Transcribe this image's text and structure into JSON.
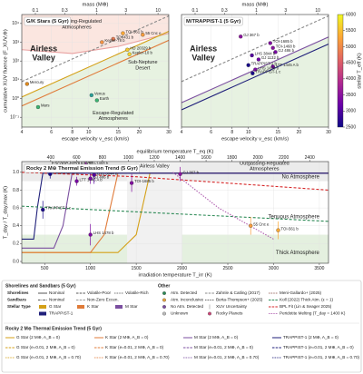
{
  "chart_data": [
    {
      "type": "scatter",
      "title": "G/K Stars (5 Gyr)",
      "x_label": "escape velocity v_esc (km/s)",
      "y_label": "cumulative XUV fluence (F_XUV,⊕)",
      "x2_label": "mass (M⊕)",
      "log_x": true,
      "log_y": true,
      "grid": true,
      "xlim": [
        4,
        30
      ],
      "xticks": [
        4,
        6,
        8,
        10,
        15,
        20,
        30
      ],
      "x2lim": [
        0.06,
        15
      ],
      "x2ticks": [
        0.1,
        0.3,
        1,
        3,
        10
      ],
      "ylim": [
        0.03,
        30000
      ],
      "yticks": [
        {
          "value": 0.1,
          "label": "10⁻¹"
        },
        {
          "value": 1,
          "label": "10⁰"
        },
        {
          "value": 10,
          "label": "10¹"
        },
        {
          "value": 100,
          "label": "10²"
        },
        {
          "value": 1000,
          "label": "10³"
        },
        {
          "value": 10000,
          "label": "10⁴"
        }
      ],
      "lines": [
        {
          "color": "#e8a0a0",
          "x": [
            4,
            8,
            15,
            30
          ],
          "y": [
            400,
            250,
            600,
            3000
          ],
          "fill": "above",
          "fill_color": "#fbe6e0"
        },
        {
          "color": "#d4a017",
          "x": [
            4,
            30
          ],
          "y": [
            1.2,
            3800
          ],
          "fill": "below",
          "fill_color": "#e7f2e1"
        },
        {
          "color": "#e07b39",
          "x": [
            4,
            30
          ],
          "y": [
            0.4,
            1266
          ]
        },
        {
          "color": "#888888",
          "dash": "3,2",
          "x": [
            4,
            30
          ],
          "y": [
            8,
            25300
          ]
        }
      ],
      "points": [
        {
          "label": "Mercury",
          "x": 4.3,
          "y": 6,
          "color": "#e08a1e"
        },
        {
          "label": "Venus",
          "x": 10.4,
          "y": 1.5,
          "color": "#2aa198"
        },
        {
          "label": "Earth",
          "x": 11.2,
          "y": 0.8,
          "color": "#3cb371"
        },
        {
          "label": "Mars",
          "x": 5.0,
          "y": 0.35,
          "color": "#3cb371"
        },
        {
          "label": "TOI-561 b",
          "x": 16,
          "y": 3000,
          "teff": 5326
        },
        {
          "label": "55 Cnc e",
          "x": 21,
          "y": 2500,
          "teff": 5196
        },
        {
          "label": "TOI-431 b",
          "x": 14,
          "y": 1500,
          "teff": 4850
        },
        {
          "label": "Kepler-78 b",
          "x": 12,
          "y": 1000,
          "teff": 5100
        },
        {
          "label": "HD 20329 b",
          "x": 17,
          "y": 400,
          "teff": 5600
        },
        {
          "label": "Kepler-10 b",
          "x": 17.5,
          "y": 230,
          "teff": 5700
        }
      ],
      "annotations": [
        {
          "text": [
            "Outgassing-Regulated",
            "Atmospheres"
          ],
          "color": "#c97a7a"
        },
        {
          "text": [
            "Airless",
            "Valley"
          ],
          "color": "#9a9a9a"
        },
        {
          "text": [
            "Sub-Neptune",
            "Desert"
          ],
          "color": "#777777"
        },
        {
          "text": [
            "Escape-Regulated",
            "Atmospheres"
          ],
          "color": "#777777"
        }
      ]
    },
    {
      "type": "scatter",
      "title": "M/TRAPPIST-1 (5 Gyr)",
      "x_label": "escape velocity v_esc (km/s)",
      "x2_label": "mass (M⊕)",
      "log_x": true,
      "log_y": true,
      "grid": true,
      "xlim": [
        4,
        30
      ],
      "xticks": [
        4,
        6,
        8,
        10,
        15,
        20,
        30
      ],
      "x2lim": [
        0.06,
        15
      ],
      "x2ticks": [
        0.1,
        0.3,
        1,
        3,
        10
      ],
      "ylim": [
        0.03,
        30000
      ],
      "lines": [
        {
          "color": "#7b4fa0",
          "x": [
            4,
            30
          ],
          "y": [
            0.6,
            1900
          ],
          "fill": "below",
          "fill_color": "#e7f2e1"
        },
        {
          "color": "#1f1f7a",
          "x": [
            4,
            30
          ],
          "y": [
            0.25,
            800
          ]
        },
        {
          "color": "#888888",
          "dash": "3,2",
          "x": [
            4,
            30
          ],
          "y": [
            8,
            25300
          ]
        }
      ],
      "points": [
        {
          "label": "GJ 367 b",
          "x": 9,
          "y": 2000,
          "teff": 3522
        },
        {
          "label": "TOI-1685 b",
          "x": 13.5,
          "y": 900,
          "teff": 3434
        },
        {
          "label": "TOI-1468 b",
          "x": 14,
          "y": 500,
          "teff": 3496
        },
        {
          "label": "GJ 486 b",
          "x": 14.5,
          "y": 300,
          "teff": 3340
        },
        {
          "label": "LHS 3844 b",
          "x": 10.5,
          "y": 200,
          "teff": 3036
        },
        {
          "label": "GJ 1132 b",
          "x": 11.5,
          "y": 120,
          "teff": 3270
        },
        {
          "label": "TRAPPIST-1 b",
          "x": 10,
          "y": 60,
          "teff": 2566
        },
        {
          "label": "LTT 1445 A b",
          "x": 14,
          "y": 50,
          "teff": 3340
        },
        {
          "label": "LHS 1478 b",
          "x": 11,
          "y": 35,
          "teff": 3381
        },
        {
          "label": "TRAPPIST-1 c",
          "x": 10.6,
          "y": 22,
          "teff": 2566
        }
      ],
      "annotations": [
        {
          "text": [
            "Airless",
            "Valley"
          ],
          "color": "#9a9a9a"
        }
      ],
      "colorbar": {
        "label": "stellar T_eff (K)",
        "lim": [
          2500,
          6000
        ],
        "ticks": [
          2500,
          3000,
          3500,
          4000,
          4500,
          5000,
          5500,
          6000
        ]
      }
    },
    {
      "type": "line",
      "title": "Rocky 2 M⊕ Thermal Emission Trend (5 Gyr)",
      "x_label": "irradiation temperature T_irr (K)",
      "y_label": "T_day / T_day,max (K)",
      "x2_label": "equilibrium temperature T_eq (K)",
      "log_x": false,
      "log_y": false,
      "grid": true,
      "xlim": [
        250,
        3600
      ],
      "xticks": [
        500,
        1000,
        1500,
        2000,
        2500,
        3000,
        3500
      ],
      "x2lim": [
        176.8,
        2545.6
      ],
      "x2ticks": [
        400,
        600,
        800,
        1000,
        1200,
        1400,
        1600,
        1800,
        2000,
        2200,
        2400
      ],
      "ylim": [
        -0.02,
        1.12
      ],
      "yticks": [
        {
          "value": 0,
          "label": "0.0"
        },
        {
          "value": 0.2,
          "label": "0.2"
        },
        {
          "value": 0.4,
          "label": "0.4"
        },
        {
          "value": 0.6,
          "label": "0.6"
        },
        {
          "value": 0.8,
          "label": "0.8"
        },
        {
          "value": 1,
          "label": "1.0"
        }
      ],
      "hbands": [
        {
          "y": [
            0.9,
            1.12
          ],
          "color": "#ebebeb"
        },
        {
          "y": [
            -0.02,
            0.3
          ],
          "color": "#e4f0df"
        }
      ],
      "bands": [
        {
          "x": [
            1400,
            2000
          ],
          "color": "#f1f1f1"
        }
      ],
      "lines": [
        {
          "color": "#d4a017",
          "x": [
            250,
            1300,
            1500,
            1650,
            3600
          ],
          "y": [
            0.1,
            0.1,
            0.3,
            0.99,
            0.99
          ]
        },
        {
          "color": "#e07b39",
          "x": [
            250,
            1000,
            1150,
            1300,
            3600
          ],
          "y": [
            0.1,
            0.1,
            0.3,
            0.99,
            0.99
          ]
        },
        {
          "color": "#7b4fa0",
          "x": [
            250,
            600,
            700,
            800,
            3600
          ],
          "y": [
            0.15,
            0.15,
            0.4,
            0.99,
            0.99
          ]
        },
        {
          "color": "#1f1f7a",
          "x": [
            250,
            380,
            420,
            480,
            3600
          ],
          "y": [
            0.25,
            0.25,
            0.6,
            0.99,
            0.99
          ]
        },
        {
          "color": "#2e8b57",
          "dash": "3,2",
          "x": [
            250,
            3600
          ],
          "y": [
            0.62,
            0.45
          ]
        },
        {
          "color": "#d62728",
          "dash": "3,2",
          "x": [
            250,
            1500,
            3600
          ],
          "y": [
            1.0,
            0.95,
            0.8
          ]
        },
        {
          "color": "#b05fb0",
          "dash": "1.5,1.5",
          "x": [
            1900,
            2400,
            3000
          ],
          "y": [
            1.0,
            0.6,
            0.25
          ]
        }
      ],
      "points": [
        {
          "label": "TRAPPIST-1 c",
          "x": 480,
          "y": 0.58,
          "err": 0.1,
          "teff": 2566
        },
        {
          "label": "TRAPPIST-1 b",
          "x": 560,
          "y": 0.98,
          "err": 0.05,
          "teff": 2566
        },
        {
          "label": "LTT 1445 A b",
          "x": 850,
          "y": 0.9,
          "err": 0.05,
          "teff": 3340
        },
        {
          "label": "LHS 1478 b",
          "x": 1000,
          "y": 0.3,
          "err": 0.12,
          "teff": 3381
        },
        {
          "label": "TOI-1468 b",
          "x": 950,
          "y": 1.08,
          "err": 0.1,
          "teff": 3496
        },
        {
          "label": "GJ 486 b",
          "x": 1000,
          "y": 0.93,
          "err": 0.06,
          "teff": 3340
        },
        {
          "label": "LHS 3844 b",
          "x": 1040,
          "y": 0.97,
          "err": 0.1,
          "teff": 3036
        },
        {
          "label": "TOI-1685 b",
          "x": 1450,
          "y": 0.88,
          "err": 0.1,
          "teff": 3434
        },
        {
          "label": "GJ 367 b",
          "x": 1980,
          "y": 0.98,
          "err": 0.08,
          "teff": 3522
        },
        {
          "label": "55 Cnc e",
          "x": 2750,
          "y": 0.4,
          "err": 0.1,
          "teff": 5196
        },
        {
          "label": "TOI-561 b",
          "x": 3050,
          "y": 0.35,
          "err": 0.1,
          "teff": 5326
        }
      ],
      "annotations": [
        {
          "text": [
            "Escape-Regulated",
            "Atmospheres"
          ],
          "color": "#888888"
        },
        {
          "text": [
            "Airless Valley"
          ],
          "color": "#888888"
        },
        {
          "text": [
            "Outgassing-Regulated",
            "Atmospheres"
          ],
          "color": "#888888"
        },
        {
          "text": [
            "No Atmosphere"
          ],
          "color": "#777777"
        },
        {
          "text": [
            "Tenuous Atmosphere"
          ],
          "color": "#2e8b57"
        },
        {
          "text": [
            "Thick Atmosphere"
          ],
          "color": "#2e8b57"
        }
      ]
    }
  ],
  "legend": {
    "sections": [
      {
        "title": "Shorelines and Sandbars (5 Gyr)",
        "groups": [
          {
            "label": "Shorelines",
            "items": [
              {
                "text": "Nominal",
                "kind": "line",
                "color": "#555555"
              },
              {
                "text": "Volatile-Poor",
                "kind": "dash",
                "color": "#555555"
              },
              {
                "text": "Volatile-Rich",
                "kind": "dot",
                "color": "#555555"
              }
            ]
          },
          {
            "label": "Sandbars",
            "items": [
              {
                "text": "Nominal",
                "kind": "dashdot",
                "color": "#555555"
              },
              {
                "text": "Non-Zero Eccen.",
                "kind": "dash",
                "color": "#999999"
              }
            ]
          },
          {
            "label": "Stellar Type",
            "items": [
              {
                "text": "G Star",
                "kind": "patch",
                "color": "#d4a017"
              },
              {
                "text": "K Star",
                "kind": "patch",
                "color": "#e07b39"
              },
              {
                "text": "M Star",
                "kind": "patch",
                "color": "#7b4fa0"
              },
              {
                "text": "TRAPPIST-1",
                "kind": "patch",
                "color": "#1f1f7a"
              }
            ]
          }
        ]
      },
      {
        "title": "Other",
        "groups": [
          {
            "items": [
              {
                "text": "Atm. Detected",
                "kind": "marker",
                "color": "#2e8b57"
              },
              {
                "text": "Atm. Inconclusive",
                "kind": "marker",
                "color": "#e6a23c"
              },
              {
                "text": "No Atm. Detected",
                "kind": "marker",
                "color": "#7b4fa0"
              },
              {
                "text": "Unknown",
                "kind": "marker",
                "color": "#bbbbbb"
              },
              {
                "text": "Zahnle & Catling (2017)",
                "kind": "dash",
                "color": "#888888"
              },
              {
                "text": "Berta-Thompson+ (2025)",
                "kind": "dot",
                "color": "#444444"
              },
              {
                "text": "XUV Uncertainty",
                "kind": "errorbar",
                "color": "#aaaaaa"
              },
              {
                "text": "Rocky Planets",
                "kind": "marker",
                "color": "#cc4778"
              },
              {
                "text": "Meni-Gallardo+ (2025)",
                "kind": "dot",
                "color": "#8c564b"
              },
              {
                "text": "Koll (2022) Thick Atm. (ε = 1)",
                "kind": "dash",
                "color": "#2e8b57"
              },
              {
                "text": "BPL Fit (Lin & Seager 2025)",
                "kind": "dash",
                "color": "#d62728"
              },
              {
                "text": "Peridotite Melting (T_day = 1400 K)",
                "kind": "dot",
                "color": "#b05fb0"
              }
            ]
          }
        ]
      },
      {
        "title": "Rocky 2 M⊕ Thermal Emission Trend (5 Gyr)",
        "groups": [
          {
            "items": [
              {
                "text": "G Star (2 M⊕, A_B = 0)",
                "kind": "line",
                "color": "#d4a017"
              },
              {
                "text": "G Star (e=0.01, 2 M⊕, A_B = 0)",
                "kind": "dash",
                "color": "#d4a017"
              },
              {
                "text": "G Star (e=0.01, 2 M⊕, A_B = 0.70)",
                "kind": "dot",
                "color": "#d4a017"
              },
              {
                "text": "K Star (2 M⊕, A_B = 0)",
                "kind": "line",
                "color": "#e07b39"
              },
              {
                "text": "K Star (e=0.01, 2 M⊕, A_B = 0)",
                "kind": "dash",
                "color": "#e07b39"
              },
              {
                "text": "K Star (e=0.01, 2 M⊕, A_B = 0.70)",
                "kind": "dot",
                "color": "#e07b39"
              },
              {
                "text": "M Star (2 M⊕, A_B = 0)",
                "kind": "line",
                "color": "#7b4fa0"
              },
              {
                "text": "M Star (e=0.01, 2 M⊕, A_B = 0)",
                "kind": "dash",
                "color": "#7b4fa0"
              },
              {
                "text": "M Star (e=0.01, 2 M⊕, A_B = 0.70)",
                "kind": "dot",
                "color": "#7b4fa0"
              },
              {
                "text": "TRAPPIST-1 (2 M⊕, A_B = 0)",
                "kind": "line",
                "color": "#1f1f7a"
              },
              {
                "text": "TRAPPIST-1 (e=0.01, 2 M⊕, A_B = 0)",
                "kind": "dash",
                "color": "#1f1f7a"
              },
              {
                "text": "TRAPPIST-1 (e=0.01, 2 M⊕, A_B = 0.70)",
                "kind": "dot",
                "color": "#1f1f7a"
              }
            ]
          }
        ]
      }
    ]
  }
}
